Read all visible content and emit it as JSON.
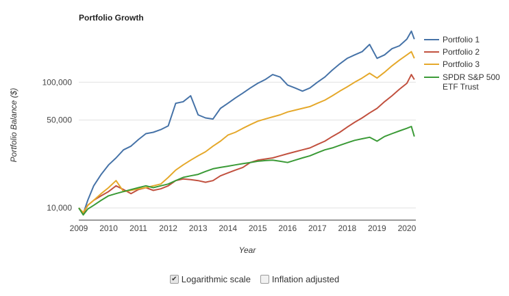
{
  "chart_data": {
    "type": "line",
    "title": "Portfolio Growth",
    "xlabel": "Year",
    "ylabel": "Portfolio Balance ($)",
    "y_scale": "log",
    "ylim": [
      8000,
      260000
    ],
    "xlim": [
      2009.0,
      2020.3
    ],
    "yticks": [
      {
        "value": 10000,
        "label": "10,000"
      },
      {
        "value": 50000,
        "label": "50,000"
      },
      {
        "value": 100000,
        "label": "100,000"
      }
    ],
    "xticks": [
      {
        "value": 2009,
        "label": "2009"
      },
      {
        "value": 2010,
        "label": "2010"
      },
      {
        "value": 2011,
        "label": "2011"
      },
      {
        "value": 2012,
        "label": "2012"
      },
      {
        "value": 2013,
        "label": "2013"
      },
      {
        "value": 2014,
        "label": "2014"
      },
      {
        "value": 2015,
        "label": "2015"
      },
      {
        "value": 2016,
        "label": "2016"
      },
      {
        "value": 2017,
        "label": "2017"
      },
      {
        "value": 2018,
        "label": "2018"
      },
      {
        "value": 2019,
        "label": "2019"
      },
      {
        "value": 2020,
        "label": "2020"
      }
    ],
    "grid": "horizontal",
    "legend_position": "right",
    "series": [
      {
        "name": "Portfolio 1",
        "color": "#4572a7",
        "x": [
          2009.0,
          2009.15,
          2009.3,
          2009.5,
          2009.75,
          2010.0,
          2010.25,
          2010.5,
          2010.75,
          2011.0,
          2011.25,
          2011.5,
          2011.75,
          2012.0,
          2012.25,
          2012.5,
          2012.75,
          2013.0,
          2013.25,
          2013.5,
          2013.75,
          2014.0,
          2014.25,
          2014.5,
          2014.75,
          2015.0,
          2015.25,
          2015.5,
          2015.75,
          2016.0,
          2016.25,
          2016.5,
          2016.75,
          2017.0,
          2017.25,
          2017.5,
          2017.75,
          2018.0,
          2018.25,
          2018.5,
          2018.75,
          2019.0,
          2019.25,
          2019.5,
          2019.75,
          2020.0,
          2020.15,
          2020.25
        ],
        "y": [
          10000,
          9000,
          11500,
          15000,
          18500,
          22000,
          25000,
          29000,
          31000,
          35000,
          39000,
          40000,
          42000,
          45000,
          68000,
          70000,
          78000,
          55000,
          52000,
          51000,
          62000,
          68000,
          75000,
          82000,
          90000,
          98000,
          105000,
          115000,
          110000,
          95000,
          90000,
          85000,
          90000,
          100000,
          110000,
          125000,
          140000,
          155000,
          165000,
          175000,
          200000,
          155000,
          165000,
          185000,
          195000,
          220000,
          255000,
          220000
        ]
      },
      {
        "name": "Portfolio 2",
        "color": "#c1503e",
        "x": [
          2009.0,
          2009.15,
          2009.3,
          2009.5,
          2009.75,
          2010.0,
          2010.25,
          2010.5,
          2010.75,
          2011.0,
          2011.25,
          2011.5,
          2011.75,
          2012.0,
          2012.25,
          2012.5,
          2012.75,
          2013.0,
          2013.25,
          2013.5,
          2013.75,
          2014.0,
          2014.25,
          2014.5,
          2014.75,
          2015.0,
          2015.25,
          2015.5,
          2015.75,
          2016.0,
          2016.25,
          2016.5,
          2016.75,
          2017.0,
          2017.25,
          2017.5,
          2017.75,
          2018.0,
          2018.25,
          2018.5,
          2018.75,
          2019.0,
          2019.25,
          2019.5,
          2019.75,
          2020.0,
          2020.15,
          2020.25
        ],
        "y": [
          10000,
          9000,
          10500,
          11500,
          12500,
          13500,
          15000,
          14000,
          13000,
          14000,
          14500,
          13800,
          14200,
          15000,
          16500,
          17000,
          16800,
          16500,
          16000,
          16500,
          18000,
          19000,
          20000,
          21000,
          23000,
          24000,
          24500,
          25000,
          26000,
          27000,
          28000,
          29000,
          30000,
          32000,
          34000,
          37000,
          40000,
          44000,
          48000,
          52000,
          57000,
          62000,
          70000,
          78000,
          88000,
          98000,
          115000,
          105000
        ]
      },
      {
        "name": "Portfolio 3",
        "color": "#e5a82a",
        "x": [
          2009.0,
          2009.15,
          2009.3,
          2009.5,
          2009.75,
          2010.0,
          2010.25,
          2010.5,
          2010.75,
          2011.0,
          2011.25,
          2011.5,
          2011.75,
          2012.0,
          2012.25,
          2012.5,
          2012.75,
          2013.0,
          2013.25,
          2013.5,
          2013.75,
          2014.0,
          2014.25,
          2014.5,
          2014.75,
          2015.0,
          2015.25,
          2015.5,
          2015.75,
          2016.0,
          2016.25,
          2016.5,
          2016.75,
          2017.0,
          2017.25,
          2017.5,
          2017.75,
          2018.0,
          2018.25,
          2018.5,
          2018.75,
          2019.0,
          2019.25,
          2019.5,
          2019.75,
          2020.0,
          2020.15,
          2020.25
        ],
        "y": [
          10000,
          9200,
          10500,
          11500,
          13000,
          14500,
          16500,
          13500,
          13800,
          14200,
          14500,
          15000,
          15500,
          17500,
          20000,
          22000,
          24000,
          26000,
          28000,
          31000,
          34000,
          38000,
          40000,
          43000,
          46000,
          49000,
          51000,
          53000,
          55000,
          58000,
          60000,
          62000,
          64000,
          68000,
          72000,
          78000,
          85000,
          92000,
          100000,
          108000,
          118000,
          108000,
          120000,
          135000,
          150000,
          165000,
          175000,
          155000
        ]
      },
      {
        "name": "SPDR S&P 500 ETF Trust",
        "color": "#3a9a36",
        "x": [
          2009.0,
          2009.15,
          2009.3,
          2009.5,
          2009.75,
          2010.0,
          2010.25,
          2010.5,
          2010.75,
          2011.0,
          2011.25,
          2011.5,
          2011.75,
          2012.0,
          2012.25,
          2012.5,
          2012.75,
          2013.0,
          2013.25,
          2013.5,
          2013.75,
          2014.0,
          2014.25,
          2014.5,
          2014.75,
          2015.0,
          2015.25,
          2015.5,
          2015.75,
          2016.0,
          2016.25,
          2016.5,
          2016.75,
          2017.0,
          2017.25,
          2017.5,
          2017.75,
          2018.0,
          2018.25,
          2018.5,
          2018.75,
          2019.0,
          2019.25,
          2019.5,
          2019.75,
          2020.0,
          2020.15,
          2020.25
        ],
        "y": [
          10000,
          8800,
          9800,
          10500,
          11500,
          12500,
          13000,
          13500,
          14000,
          14500,
          15000,
          14500,
          15000,
          15500,
          16500,
          17500,
          18000,
          18500,
          19500,
          20500,
          21000,
          21500,
          22000,
          22500,
          23000,
          23500,
          23800,
          24000,
          23500,
          23000,
          24000,
          25000,
          26000,
          27500,
          29000,
          30000,
          31500,
          33000,
          34500,
          35500,
          36500,
          34000,
          37000,
          39000,
          41000,
          43000,
          44500,
          37000
        ]
      }
    ]
  },
  "controls": {
    "log_scale": {
      "label": "Logarithmic scale",
      "checked": true
    },
    "inflation": {
      "label": "Inflation adjusted",
      "checked": false
    }
  }
}
